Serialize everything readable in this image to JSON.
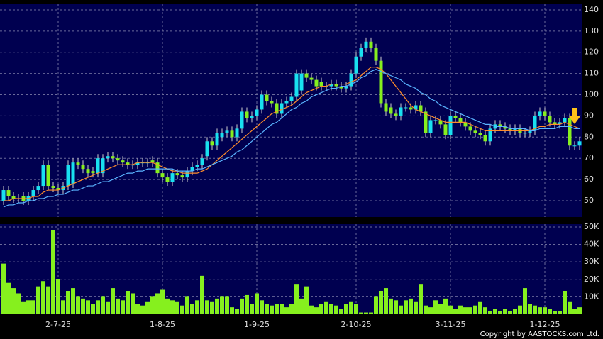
{
  "chart_data": {
    "type": "candlestick",
    "categories": [
      null,
      null,
      null,
      null,
      null,
      null,
      null,
      null,
      null,
      null,
      null,
      "2-7-25",
      null,
      null,
      null,
      null,
      null,
      null,
      null,
      null,
      null,
      null,
      null,
      null,
      null,
      null,
      null,
      null,
      null,
      null,
      null,
      null,
      "1-8-25",
      null,
      null,
      null,
      null,
      null,
      null,
      null,
      null,
      null,
      null,
      null,
      null,
      null,
      null,
      null,
      null,
      null,
      null,
      "1-9-25",
      null,
      null,
      null,
      null,
      null,
      null,
      null,
      null,
      null,
      null,
      null,
      null,
      null,
      null,
      null,
      null,
      null,
      null,
      null,
      "2-10-25",
      null,
      null,
      null,
      null,
      null,
      null,
      null,
      null,
      null,
      null,
      null,
      null,
      null,
      null,
      null,
      null,
      null,
      null,
      "3-11-25",
      null,
      null,
      null,
      null,
      null,
      null,
      null,
      null,
      null,
      null,
      null,
      null,
      null,
      null,
      null,
      null,
      null,
      null,
      "1-12-25",
      null,
      null,
      null,
      null,
      null,
      null,
      null
    ],
    "open": [
      50,
      55,
      52,
      51,
      52,
      50,
      52,
      55,
      57,
      67,
      57,
      56,
      55,
      57,
      58,
      68,
      67,
      65,
      64,
      63,
      63,
      70,
      71,
      70,
      69,
      68,
      67,
      67,
      68,
      68,
      69,
      68,
      63,
      61,
      59,
      63,
      62,
      61,
      64,
      66,
      67,
      71,
      78,
      76,
      80,
      82,
      83,
      80,
      84,
      92,
      89,
      90,
      93,
      100,
      97,
      96,
      91,
      96,
      97,
      99,
      102,
      110,
      108,
      107,
      106,
      104,
      104,
      105,
      104,
      103,
      104,
      110,
      118,
      122,
      125,
      122,
      116,
      96,
      94,
      91,
      90,
      94,
      94,
      93,
      95,
      92,
      82,
      88,
      88,
      86,
      81,
      90,
      89,
      87,
      85,
      83,
      82,
      81,
      78,
      84,
      86,
      85,
      84,
      83,
      84,
      82,
      82,
      83,
      90,
      92,
      90,
      87,
      86,
      87,
      89,
      76,
      76
    ],
    "high": [
      57,
      57,
      54,
      53,
      54,
      54,
      57,
      59,
      69,
      69,
      59,
      58,
      59,
      69,
      70,
      70,
      69,
      67,
      66,
      72,
      72,
      73,
      73,
      72,
      71,
      70,
      69,
      70,
      70,
      70,
      71,
      70,
      65,
      63,
      65,
      65,
      64,
      66,
      68,
      69,
      72,
      80,
      80,
      84,
      84,
      85,
      85,
      86,
      94,
      94,
      92,
      95,
      102,
      102,
      99,
      98,
      98,
      99,
      101,
      112,
      112,
      112,
      110,
      109,
      108,
      106,
      107,
      107,
      106,
      106,
      112,
      120,
      124,
      127,
      127,
      124,
      118,
      98,
      96,
      93,
      96,
      96,
      96,
      97,
      97,
      94,
      90,
      90,
      90,
      88,
      92,
      92,
      91,
      89,
      87,
      85,
      84,
      83,
      86,
      88,
      88,
      87,
      86,
      86,
      86,
      84,
      85,
      92,
      94,
      94,
      92,
      89,
      89,
      91,
      91,
      78,
      80
    ],
    "low": [
      48,
      50,
      49,
      49,
      48,
      48,
      50,
      53,
      55,
      55,
      54,
      53,
      53,
      55,
      56,
      65,
      63,
      61,
      61,
      61,
      61,
      68,
      68,
      67,
      66,
      65,
      65,
      65,
      66,
      66,
      66,
      61,
      59,
      57,
      57,
      60,
      59,
      59,
      62,
      64,
      65,
      69,
      74,
      74,
      78,
      80,
      78,
      78,
      82,
      87,
      87,
      88,
      91,
      95,
      94,
      89,
      89,
      94,
      95,
      97,
      100,
      106,
      105,
      102,
      102,
      102,
      102,
      102,
      101,
      101,
      102,
      108,
      116,
      120,
      120,
      114,
      94,
      90,
      89,
      88,
      88,
      92,
      91,
      91,
      90,
      80,
      80,
      86,
      84,
      79,
      79,
      87,
      85,
      83,
      81,
      80,
      79,
      76,
      76,
      82,
      83,
      82,
      81,
      81,
      80,
      80,
      80,
      81,
      88,
      88,
      85,
      84,
      84,
      85,
      74,
      74,
      74
    ],
    "close": [
      55,
      52,
      51,
      51,
      50,
      52,
      55,
      57,
      67,
      57,
      56,
      55,
      57,
      67,
      68,
      67,
      65,
      63,
      63,
      70,
      70,
      71,
      70,
      69,
      68,
      67,
      67,
      68,
      68,
      68,
      68,
      63,
      61,
      59,
      63,
      62,
      61,
      64,
      66,
      67,
      70,
      78,
      76,
      82,
      82,
      83,
      80,
      84,
      92,
      89,
      90,
      93,
      100,
      97,
      96,
      91,
      96,
      97,
      99,
      110,
      110,
      108,
      107,
      104,
      104,
      104,
      105,
      104,
      103,
      104,
      110,
      118,
      122,
      125,
      122,
      116,
      96,
      92,
      91,
      90,
      94,
      94,
      93,
      95,
      92,
      82,
      88,
      88,
      86,
      81,
      90,
      89,
      87,
      85,
      83,
      82,
      81,
      78,
      84,
      86,
      85,
      84,
      83,
      84,
      82,
      82,
      83,
      90,
      92,
      90,
      87,
      86,
      87,
      89,
      76,
      76,
      78
    ],
    "up_color": "#19e0f0",
    "down_color": "#86f01e",
    "series": [
      {
        "color": "#ff8c2a",
        "values": [
          50,
          50,
          51,
          51,
          51,
          51,
          52,
          52,
          54,
          55,
          55,
          55,
          56,
          57,
          58,
          59,
          60,
          61,
          62,
          63,
          64,
          65,
          66,
          67,
          67,
          67,
          67,
          68,
          68,
          68,
          68,
          67,
          66,
          65,
          64,
          64,
          63,
          63,
          63,
          63,
          64,
          65,
          67,
          69,
          71,
          73,
          75,
          77,
          79,
          81,
          83,
          85,
          87,
          89,
          91,
          92,
          93,
          94,
          95,
          97,
          99,
          101,
          102,
          103,
          104,
          104,
          105,
          105,
          105,
          105,
          106,
          107,
          109,
          111,
          113,
          113,
          112,
          110,
          107,
          104,
          101,
          98,
          95,
          93,
          92,
          91,
          90,
          89,
          88,
          87,
          87,
          87,
          87,
          87,
          86,
          85,
          84,
          83,
          83,
          83,
          83,
          83,
          83,
          83,
          83,
          83,
          83,
          84,
          85,
          85,
          86,
          86,
          86,
          87,
          86,
          85,
          84
        ]
      },
      {
        "color": "#5ab4ff",
        "values": [
          47,
          48,
          48,
          49,
          49,
          50,
          50,
          51,
          51,
          52,
          52,
          53,
          53,
          54,
          55,
          55,
          56,
          57,
          57,
          58,
          59,
          59,
          60,
          61,
          62,
          63,
          63,
          64,
          64,
          65,
          65,
          65,
          65,
          65,
          65,
          64,
          64,
          64,
          64,
          65,
          65,
          66,
          67,
          68,
          69,
          70,
          71,
          73,
          74,
          76,
          78,
          80,
          82,
          84,
          86,
          87,
          89,
          91,
          93,
          94,
          96,
          97,
          99,
          100,
          101,
          102,
          103,
          103,
          104,
          104,
          105,
          106,
          108,
          109,
          111,
          112,
          111,
          110,
          109,
          108,
          107,
          105,
          104,
          103,
          101,
          100,
          98,
          97,
          95,
          94,
          93,
          92,
          91,
          90,
          89,
          88,
          87,
          86,
          86,
          85,
          85,
          85,
          84,
          84,
          84,
          84,
          83,
          83,
          84,
          84,
          84,
          84,
          85,
          85,
          85,
          84,
          84
        ]
      }
    ],
    "ylim": [
      42.3,
      143
    ],
    "yticks": [
      50,
      60,
      70,
      80,
      90,
      100,
      110,
      120,
      130,
      140
    ],
    "grid": true,
    "volume": {
      "color": "#86f01e",
      "values": [
        29000,
        18000,
        15000,
        12000,
        7000,
        8000,
        8000,
        16000,
        19000,
        16000,
        48000,
        20000,
        8000,
        13000,
        15000,
        10000,
        9000,
        8000,
        6000,
        8000,
        10000,
        7000,
        15000,
        9000,
        8000,
        13000,
        12000,
        6000,
        5000,
        7000,
        10000,
        12000,
        14000,
        9000,
        8000,
        7000,
        5000,
        10000,
        6000,
        8000,
        22000,
        8000,
        7000,
        9000,
        10000,
        10000,
        4000,
        3000,
        9000,
        11000,
        6000,
        12000,
        8000,
        6000,
        5000,
        6000,
        6000,
        4000,
        6000,
        17000,
        9000,
        16000,
        5000,
        4000,
        6000,
        7000,
        6000,
        5000,
        3000,
        6000,
        7000,
        6000,
        1000,
        1000,
        1000,
        10000,
        13000,
        15000,
        9000,
        8000,
        5000,
        8000,
        9000,
        7000,
        17000,
        5000,
        4000,
        8000,
        6000,
        9000,
        5000,
        3000,
        5000,
        4000,
        4000,
        5000,
        7000,
        4000,
        2000,
        3000,
        2000,
        3000,
        2000,
        3000,
        5000,
        15000,
        6000,
        5000,
        4000,
        4000,
        3000,
        2000,
        2000,
        13000,
        7000,
        3000,
        4000
      ],
      "ylim": [
        0,
        51600
      ],
      "yticks": [
        {
          "value": 10000,
          "label": "10K"
        },
        {
          "value": 20000,
          "label": "20K"
        },
        {
          "value": 30000,
          "label": "30K"
        },
        {
          "value": 40000,
          "label": "40K"
        },
        {
          "value": 50000,
          "label": "50K"
        }
      ]
    },
    "copyright": "Copyright by AASTOCKS.com Ltd."
  }
}
